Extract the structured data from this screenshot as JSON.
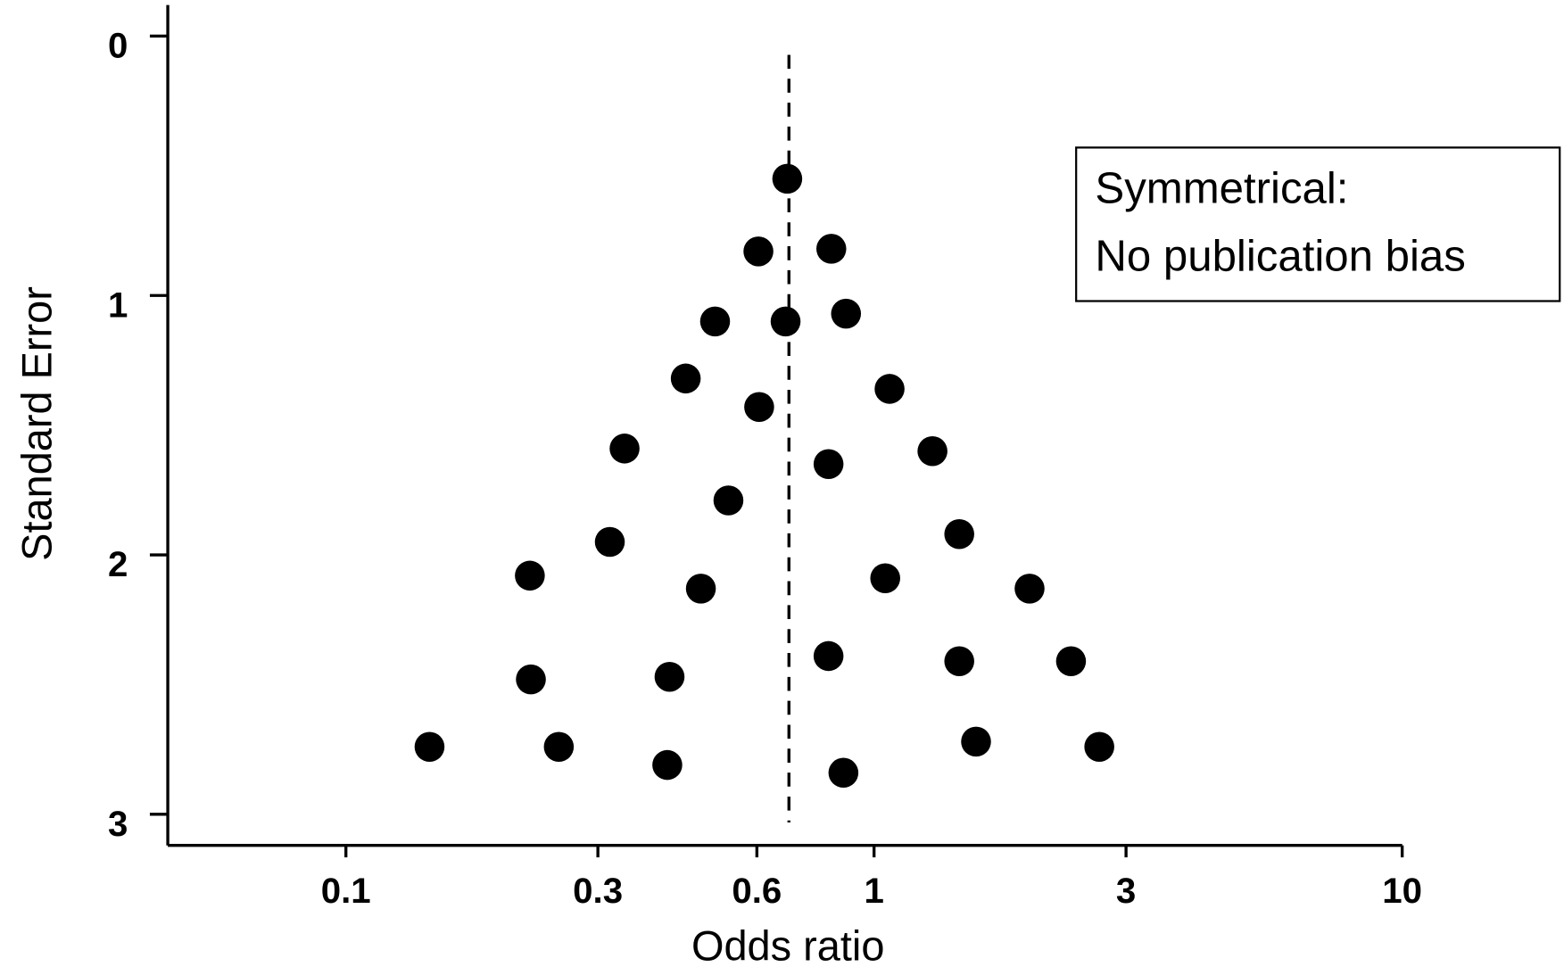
{
  "chart_data": {
    "type": "scatter",
    "x_label": "Odds ratio",
    "y_label": "Standard Error",
    "x_log": true,
    "y_inverted": true,
    "xlim": [
      0.046,
      10
    ],
    "ylim": [
      -0.12,
      3.12
    ],
    "xticks": [
      0.1,
      0.3,
      0.6,
      1,
      3,
      10
    ],
    "yticks": [
      0,
      1,
      2,
      3
    ],
    "reference_x": 0.69,
    "annotation": [
      "Symmetrical:",
      "No publication bias"
    ],
    "color": "#000000",
    "series": [
      {
        "x": [
          0.685,
          0.604,
          0.83,
          0.5,
          0.68,
          0.885,
          0.44,
          0.606,
          1.07,
          0.337,
          0.82,
          1.29,
          0.53,
          0.316,
          1.45,
          0.223,
          0.47,
          1.05,
          1.97,
          0.82,
          1.45,
          2.36,
          0.224,
          0.41,
          0.144,
          0.253,
          0.406,
          0.875,
          1.56,
          2.67
        ],
        "values": [
          0.55,
          0.83,
          0.82,
          1.1,
          1.1,
          1.07,
          1.32,
          1.43,
          1.36,
          1.59,
          1.65,
          1.6,
          1.79,
          1.95,
          1.92,
          2.08,
          2.13,
          2.09,
          2.13,
          2.39,
          2.41,
          2.41,
          2.48,
          2.47,
          2.74,
          2.74,
          2.81,
          2.84,
          2.72,
          2.74
        ]
      }
    ]
  }
}
